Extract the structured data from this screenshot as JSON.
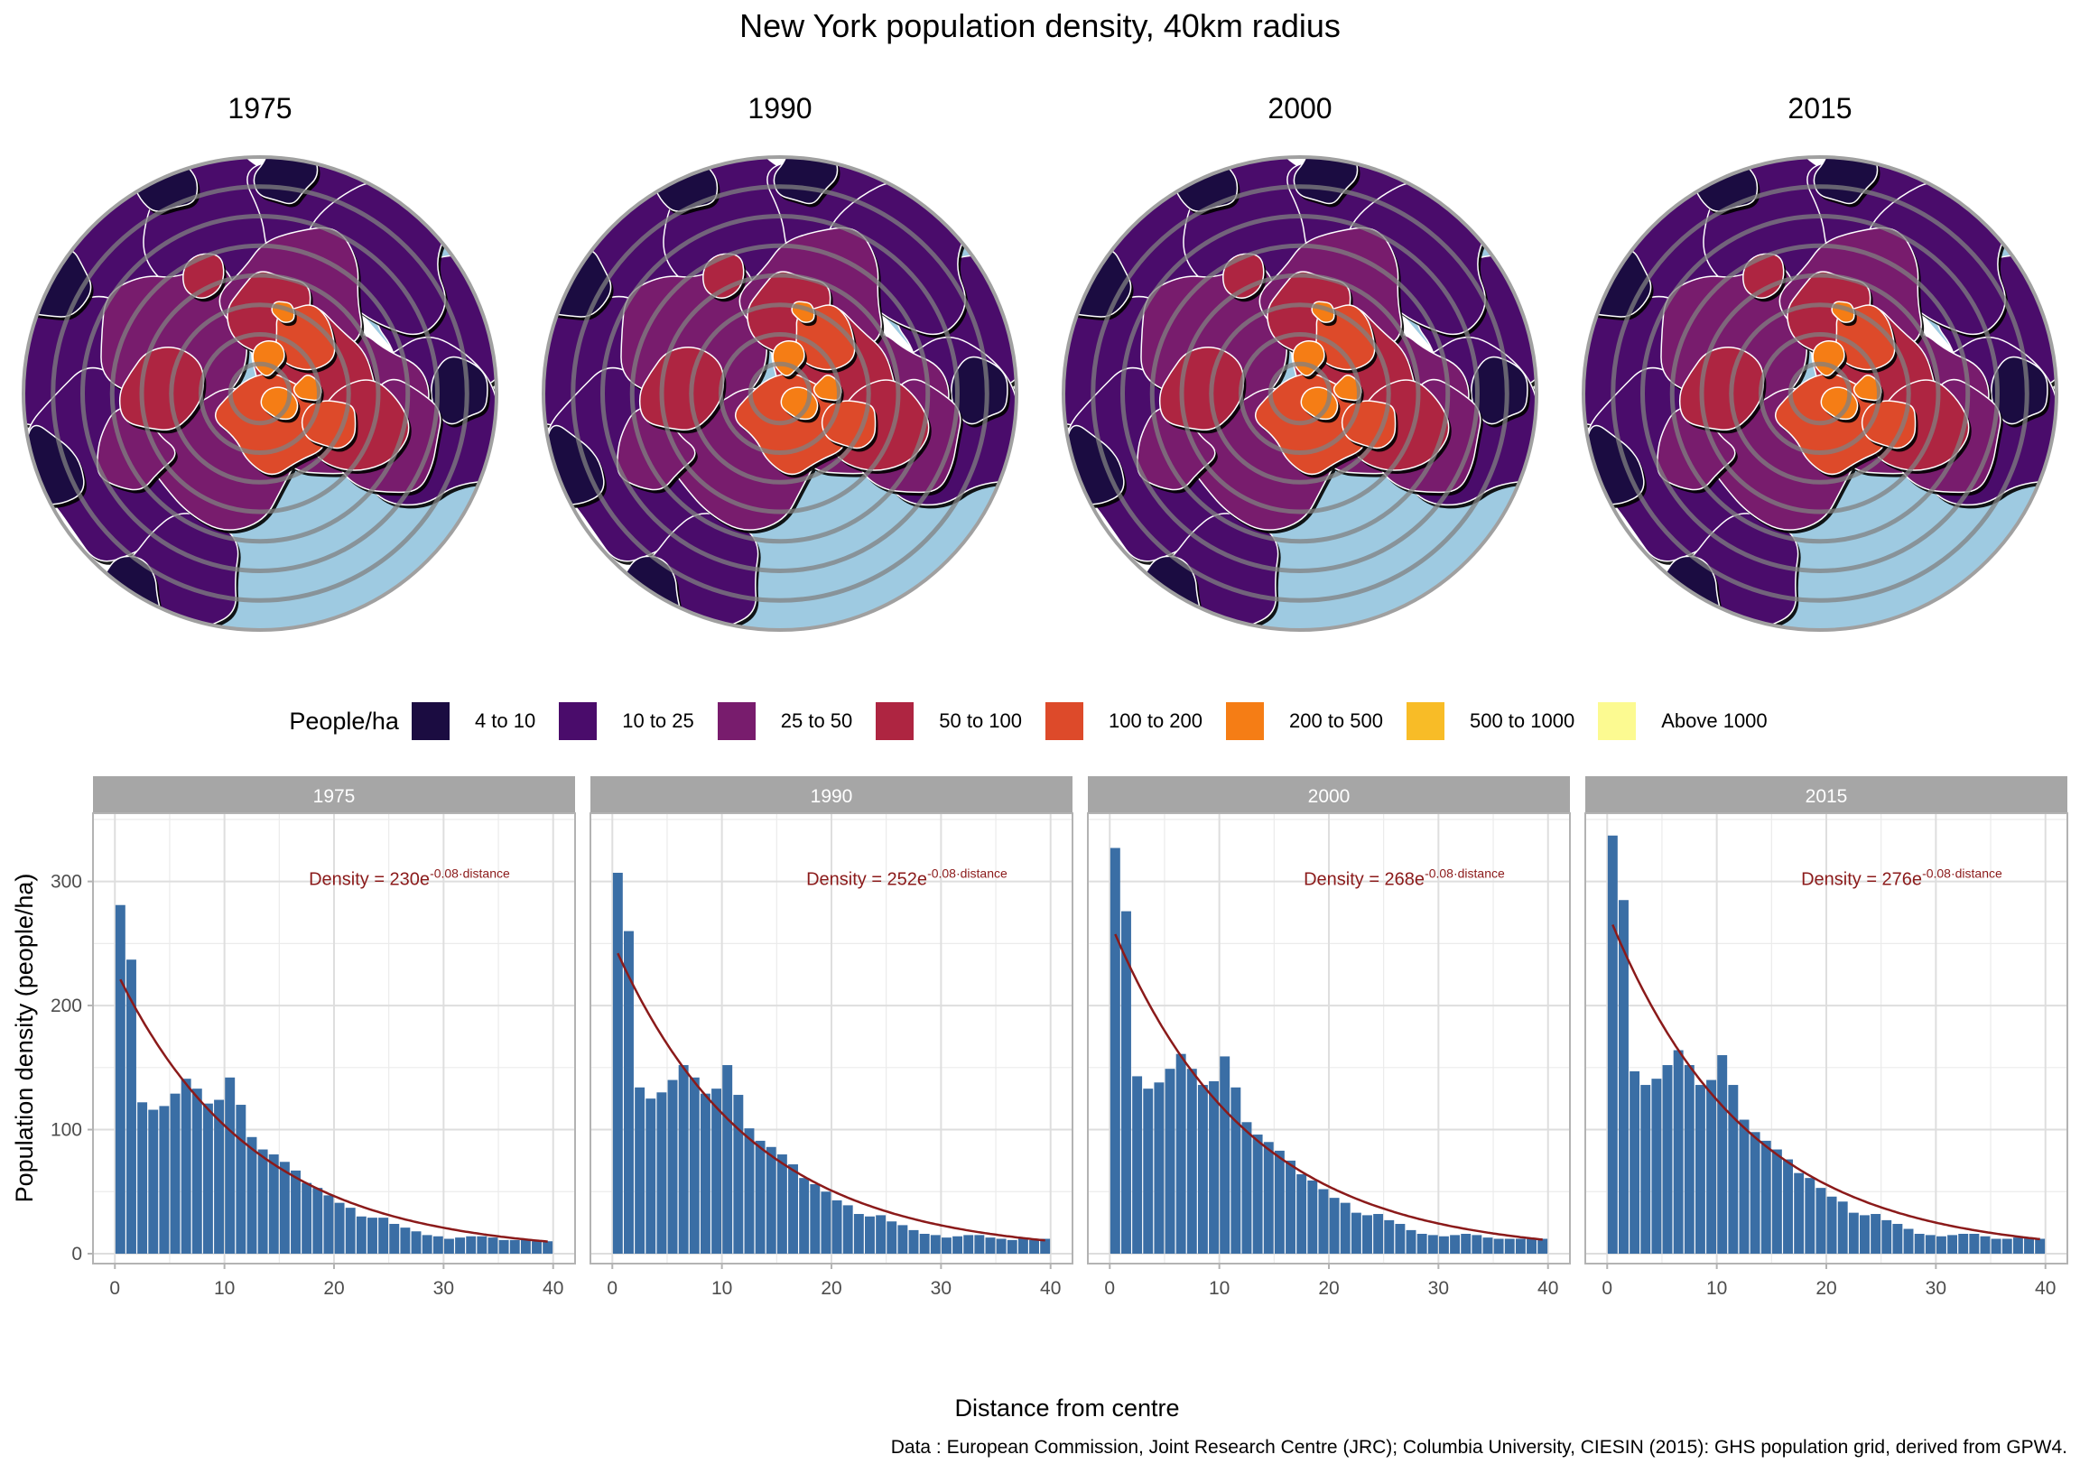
{
  "title": "New York population density, 40km radius",
  "maps": {
    "years": [
      "1975",
      "1990",
      "2000",
      "2015"
    ],
    "description": "Circular population-density contour maps of New York within a 40km radius, with concentric distance rings over water (light blue)",
    "water_color": "#9ECAE1",
    "ring_color": "#808080"
  },
  "legend": {
    "title": "People/ha",
    "items": [
      {
        "label": "4 to 10",
        "color": "#1B0C41"
      },
      {
        "label": "10 to 25",
        "color": "#4A0C6B"
      },
      {
        "label": "25 to 50",
        "color": "#781C6D"
      },
      {
        "label": "50 to 100",
        "color": "#AE2541"
      },
      {
        "label": "100 to 200",
        "color": "#DD4A2A"
      },
      {
        "label": "200 to 500",
        "color": "#F57D15"
      },
      {
        "label": "500 to 1000",
        "color": "#F8BC27"
      },
      {
        "label": "Above 1000",
        "color": "#FCFA91"
      }
    ]
  },
  "chart_data": {
    "type": "bar",
    "title": "",
    "xlabel": "Distance from centre",
    "ylabel": "Population density (people/ha)",
    "xlim": [
      -2,
      42
    ],
    "ylim": [
      -8,
      355
    ],
    "xticks": [
      0,
      10,
      20,
      30,
      40
    ],
    "yticks": [
      0,
      100,
      200,
      300
    ],
    "grid": true,
    "bar_color": "#3A6EA5",
    "fit_color": "#8B1A1A",
    "x": [
      0.5,
      1.5,
      2.5,
      3.5,
      4.5,
      5.5,
      6.5,
      7.5,
      8.5,
      9.5,
      10.5,
      11.5,
      12.5,
      13.5,
      14.5,
      15.5,
      16.5,
      17.5,
      18.5,
      19.5,
      20.5,
      21.5,
      22.5,
      23.5,
      24.5,
      25.5,
      26.5,
      27.5,
      28.5,
      29.5,
      30.5,
      31.5,
      32.5,
      33.5,
      34.5,
      35.5,
      36.5,
      37.5,
      38.5,
      39.5
    ],
    "panels": [
      {
        "strip": "1975",
        "equation": {
          "main": "Density = 230e",
          "exponent": "-0.08·distance"
        },
        "fit": {
          "a": 230,
          "b": -0.08
        },
        "values": [
          281,
          237,
          122,
          116,
          119,
          129,
          141,
          133,
          121,
          124,
          142,
          120,
          94,
          84,
          80,
          74,
          67,
          57,
          53,
          47,
          41,
          37,
          30,
          29,
          29,
          24,
          21,
          18,
          15,
          14,
          12,
          13,
          14,
          14,
          13,
          11,
          11,
          11,
          10,
          10
        ]
      },
      {
        "strip": "1990",
        "equation": {
          "main": "Density = 252e",
          "exponent": "-0.08·distance"
        },
        "fit": {
          "a": 252,
          "b": -0.08
        },
        "values": [
          307,
          260,
          134,
          125,
          130,
          140,
          152,
          142,
          129,
          133,
          152,
          128,
          101,
          91,
          86,
          80,
          72,
          61,
          56,
          50,
          43,
          39,
          32,
          30,
          31,
          26,
          23,
          19,
          16,
          15,
          13,
          14,
          15,
          15,
          13,
          12,
          11,
          12,
          11,
          12
        ]
      },
      {
        "strip": "2000",
        "equation": {
          "main": "Density = 268e",
          "exponent": "-0.08·distance"
        },
        "fit": {
          "a": 268,
          "b": -0.08
        },
        "values": [
          327,
          276,
          143,
          133,
          138,
          149,
          161,
          149,
          136,
          139,
          159,
          134,
          106,
          96,
          90,
          83,
          75,
          64,
          59,
          52,
          45,
          41,
          33,
          31,
          32,
          27,
          24,
          19,
          16,
          15,
          14,
          15,
          16,
          15,
          13,
          12,
          12,
          12,
          12,
          12
        ]
      },
      {
        "strip": "2015",
        "equation": {
          "main": "Density = 276e",
          "exponent": "-0.08·distance"
        },
        "fit": {
          "a": 276,
          "b": -0.08
        },
        "values": [
          337,
          285,
          147,
          136,
          141,
          152,
          164,
          152,
          136,
          140,
          160,
          136,
          108,
          98,
          91,
          84,
          76,
          65,
          61,
          53,
          46,
          42,
          33,
          31,
          32,
          27,
          24,
          20,
          16,
          15,
          14,
          15,
          16,
          16,
          14,
          12,
          12,
          13,
          13,
          12
        ]
      }
    ]
  },
  "caption": "Data : European Commission, Joint Research Centre (JRC); Columbia University, CIESIN (2015): GHS population grid, derived from GPW4."
}
